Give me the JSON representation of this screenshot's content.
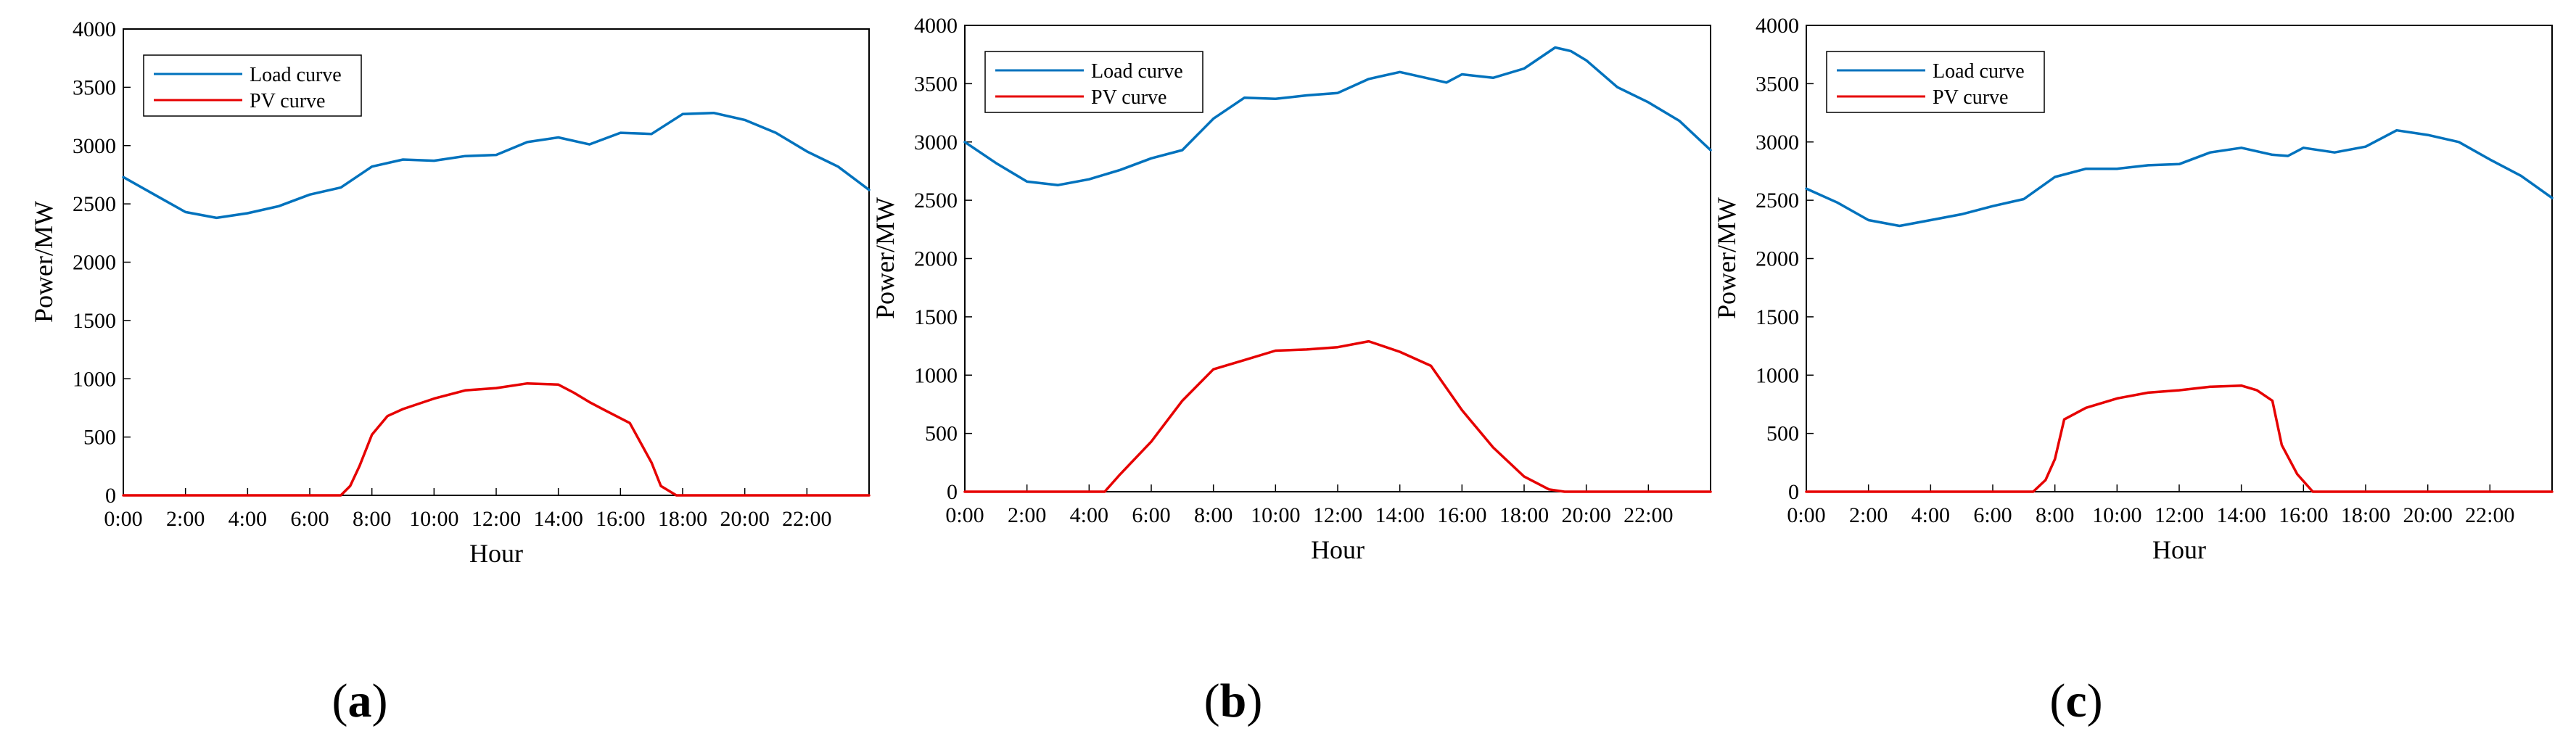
{
  "chart_data": [
    {
      "type": "line",
      "panel_label": "a",
      "xlabel": "Hour",
      "ylabel": "Power/MW",
      "ylim": [
        0,
        4000
      ],
      "xlim": [
        0,
        24
      ],
      "yticks": [
        0,
        500,
        1000,
        1500,
        2000,
        2500,
        3000,
        3500,
        4000
      ],
      "xticks": [
        "0:00",
        "2:00",
        "4:00",
        "6:00",
        "8:00",
        "10:00",
        "12:00",
        "14:00",
        "16:00",
        "18:00",
        "20:00",
        "22:00"
      ],
      "legend": {
        "placement": "top-left",
        "entries": [
          "Load curve",
          "PV curve"
        ]
      },
      "series": [
        {
          "name": "Load curve",
          "color": "#0072BD",
          "x": [
            0,
            1,
            2,
            3,
            4,
            5,
            6,
            7,
            8,
            9,
            10,
            11,
            12,
            13,
            14,
            15,
            16,
            17,
            18,
            19,
            20,
            21,
            22,
            23,
            24
          ],
          "values": [
            2730,
            2580,
            2430,
            2380,
            2420,
            2480,
            2580,
            2640,
            2820,
            2880,
            2870,
            2910,
            2920,
            3030,
            3070,
            3010,
            3110,
            3100,
            3270,
            3280,
            3220,
            3110,
            2950,
            2820,
            2620
          ]
        },
        {
          "name": "PV curve",
          "color": "#E60000",
          "x": [
            0,
            7,
            7.3,
            7.6,
            8,
            8.5,
            9,
            10,
            11,
            12,
            13,
            14,
            14.5,
            15,
            15.5,
            16.3,
            17,
            17.3,
            17.8,
            18,
            24
          ],
          "values": [
            0,
            0,
            80,
            250,
            520,
            680,
            740,
            830,
            900,
            920,
            960,
            950,
            880,
            800,
            730,
            620,
            280,
            80,
            0,
            0,
            0
          ]
        }
      ]
    },
    {
      "type": "line",
      "panel_label": "b",
      "xlabel": "Hour",
      "ylabel": "Power/MW",
      "ylim": [
        0,
        4000
      ],
      "xlim": [
        0,
        24
      ],
      "yticks": [
        0,
        500,
        1000,
        1500,
        2000,
        2500,
        3000,
        3500,
        4000
      ],
      "xticks": [
        "0:00",
        "2:00",
        "4:00",
        "6:00",
        "8:00",
        "10:00",
        "12:00",
        "14:00",
        "16:00",
        "18:00",
        "20:00",
        "22:00"
      ],
      "legend": {
        "placement": "top-left",
        "entries": [
          "Load curve",
          "PV curve"
        ]
      },
      "series": [
        {
          "name": "Load curve",
          "color": "#0072BD",
          "x": [
            0,
            1,
            2,
            3,
            4,
            5,
            6,
            7,
            8,
            9,
            10,
            11,
            12,
            13,
            14,
            15,
            15.5,
            16,
            17,
            18,
            19,
            19.5,
            20,
            21,
            22,
            23,
            24
          ],
          "values": [
            3000,
            2820,
            2660,
            2630,
            2680,
            2760,
            2860,
            2930,
            3200,
            3380,
            3370,
            3400,
            3420,
            3540,
            3600,
            3540,
            3510,
            3580,
            3550,
            3630,
            3810,
            3780,
            3700,
            3470,
            3340,
            3180,
            2930
          ]
        },
        {
          "name": "PV curve",
          "color": "#E60000",
          "x": [
            0,
            4.5,
            5,
            6,
            7,
            8,
            9,
            10,
            11,
            12,
            13,
            14,
            15,
            16,
            17,
            18,
            18.8,
            19.3,
            24
          ],
          "values": [
            0,
            0,
            150,
            430,
            780,
            1050,
            1130,
            1210,
            1220,
            1240,
            1290,
            1200,
            1080,
            700,
            380,
            130,
            20,
            0,
            0
          ]
        }
      ]
    },
    {
      "type": "line",
      "panel_label": "c",
      "xlabel": "Hour",
      "ylabel": "Power/MW",
      "ylim": [
        0,
        4000
      ],
      "xlim": [
        0,
        24
      ],
      "yticks": [
        0,
        500,
        1000,
        1500,
        2000,
        2500,
        3000,
        3500,
        4000
      ],
      "xticks": [
        "0:00",
        "2:00",
        "4:00",
        "6:00",
        "8:00",
        "10:00",
        "12:00",
        "14:00",
        "16:00",
        "18:00",
        "20:00",
        "22:00"
      ],
      "legend": {
        "placement": "top-left",
        "entries": [
          "Load curve",
          "PV curve"
        ]
      },
      "series": [
        {
          "name": "Load curve",
          "color": "#0072BD",
          "x": [
            0,
            1,
            2,
            3,
            4,
            5,
            6,
            7,
            8,
            9,
            10,
            11,
            12,
            13,
            14,
            15,
            15.5,
            16,
            17,
            18,
            19,
            20,
            21,
            22,
            23,
            24
          ],
          "values": [
            2600,
            2480,
            2330,
            2280,
            2330,
            2380,
            2450,
            2510,
            2700,
            2770,
            2770,
            2800,
            2810,
            2910,
            2950,
            2890,
            2880,
            2950,
            2910,
            2960,
            3100,
            3060,
            3000,
            2850,
            2710,
            2520
          ]
        },
        {
          "name": "PV curve",
          "color": "#E60000",
          "x": [
            0,
            7.3,
            7.7,
            8,
            8.3,
            9,
            10,
            11,
            12,
            13,
            14,
            14.5,
            15,
            15.3,
            15.8,
            16.3,
            17,
            24
          ],
          "values": [
            0,
            0,
            100,
            280,
            620,
            720,
            800,
            850,
            870,
            900,
            910,
            870,
            780,
            400,
            150,
            0,
            0,
            0
          ]
        }
      ]
    }
  ]
}
